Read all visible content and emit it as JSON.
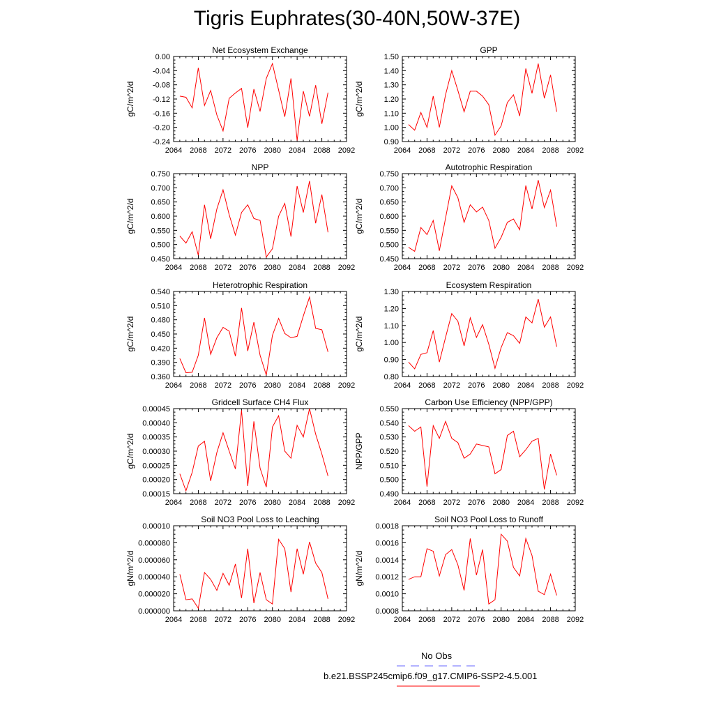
{
  "title": "Tigris Euphrates(30-40N,50W-37E)",
  "series_color": "#ff0000",
  "obs_color": "#6666ff",
  "legend": {
    "obs_label": "No Obs",
    "model_label": "b.e21.BSSP245cmip6.f09_g17.CMIP6-SSP2-4.5.001"
  },
  "chart_data": [
    {
      "type": "line",
      "title": "Net Ecosystem Exchange",
      "ylabel": "gC/m^2/d",
      "xlim": [
        2064,
        2092
      ],
      "xticks": [
        "2064",
        "2068",
        "2072",
        "2076",
        "2080",
        "2084",
        "2088",
        "2092"
      ],
      "ylim": [
        -0.24,
        0.0
      ],
      "yticks": [
        "-0.24",
        "-0.20",
        "-0.16",
        "-0.12",
        "-0.08",
        "-0.04",
        "0.00"
      ],
      "x": [
        2065,
        2066,
        2067,
        2068,
        2069,
        2070,
        2071,
        2072,
        2073,
        2074,
        2075,
        2076,
        2077,
        2078,
        2079,
        2080,
        2081,
        2082,
        2083,
        2084,
        2085,
        2086,
        2087,
        2088,
        2089
      ],
      "values": [
        -0.112,
        -0.115,
        -0.145,
        -0.032,
        -0.138,
        -0.096,
        -0.165,
        -0.21,
        -0.118,
        -0.103,
        -0.09,
        -0.201,
        -0.092,
        -0.155,
        -0.062,
        -0.02,
        -0.095,
        -0.17,
        -0.062,
        -0.237,
        -0.098,
        -0.169,
        -0.081,
        -0.19,
        -0.102
      ]
    },
    {
      "type": "line",
      "title": "GPP",
      "ylabel": "gC/m^2/d",
      "xlim": [
        2064,
        2092
      ],
      "xticks": [
        "2064",
        "2068",
        "2072",
        "2076",
        "2080",
        "2084",
        "2088",
        "2092"
      ],
      "ylim": [
        0.9,
        1.5
      ],
      "yticks": [
        "0.90",
        "1.00",
        "1.10",
        "1.20",
        "1.30",
        "1.40",
        "1.50"
      ],
      "x": [
        2065,
        2066,
        2067,
        2068,
        2069,
        2070,
        2071,
        2072,
        2073,
        2074,
        2075,
        2076,
        2077,
        2078,
        2079,
        2080,
        2081,
        2082,
        2083,
        2084,
        2085,
        2086,
        2087,
        2088,
        2089
      ],
      "values": [
        1.02,
        0.98,
        1.105,
        1.0,
        1.22,
        1.0,
        1.23,
        1.4,
        1.26,
        1.11,
        1.255,
        1.255,
        1.22,
        1.16,
        0.945,
        1.01,
        1.175,
        1.23,
        1.08,
        1.415,
        1.24,
        1.45,
        1.205,
        1.37,
        1.11
      ]
    },
    {
      "type": "line",
      "title": "NPP",
      "ylabel": "gC/m^2/d",
      "xlim": [
        2064,
        2092
      ],
      "xticks": [
        "2064",
        "2068",
        "2072",
        "2076",
        "2080",
        "2084",
        "2088",
        "2092"
      ],
      "ylim": [
        0.45,
        0.75
      ],
      "yticks": [
        "0.450",
        "0.500",
        "0.550",
        "0.600",
        "0.650",
        "0.700",
        "0.750"
      ],
      "x": [
        2065,
        2066,
        2067,
        2068,
        2069,
        2070,
        2071,
        2072,
        2073,
        2074,
        2075,
        2076,
        2077,
        2078,
        2079,
        2080,
        2081,
        2082,
        2083,
        2084,
        2085,
        2086,
        2087,
        2088,
        2089
      ],
      "values": [
        0.53,
        0.505,
        0.545,
        0.462,
        0.64,
        0.52,
        0.625,
        0.693,
        0.605,
        0.533,
        0.613,
        0.64,
        0.592,
        0.585,
        0.456,
        0.485,
        0.6,
        0.645,
        0.528,
        0.706,
        0.613,
        0.724,
        0.575,
        0.676,
        0.543
      ]
    },
    {
      "type": "line",
      "title": "Autotrophic Respiration",
      "ylabel": "gC/m^2/d",
      "xlim": [
        2064,
        2092
      ],
      "xticks": [
        "2064",
        "2068",
        "2072",
        "2076",
        "2080",
        "2084",
        "2088",
        "2092"
      ],
      "ylim": [
        0.45,
        0.75
      ],
      "yticks": [
        "0.450",
        "0.500",
        "0.550",
        "0.600",
        "0.650",
        "0.700",
        "0.750"
      ],
      "x": [
        2065,
        2066,
        2067,
        2068,
        2069,
        2070,
        2071,
        2072,
        2073,
        2074,
        2075,
        2076,
        2077,
        2078,
        2079,
        2080,
        2081,
        2082,
        2083,
        2084,
        2085,
        2086,
        2087,
        2088,
        2089
      ],
      "values": [
        0.49,
        0.476,
        0.56,
        0.535,
        0.585,
        0.478,
        0.593,
        0.707,
        0.665,
        0.578,
        0.64,
        0.615,
        0.632,
        0.585,
        0.487,
        0.525,
        0.578,
        0.59,
        0.552,
        0.708,
        0.625,
        0.727,
        0.63,
        0.692,
        0.563
      ]
    },
    {
      "type": "line",
      "title": "Heterotrophic Respiration",
      "ylabel": "gC/m^2/d",
      "xlim": [
        2064,
        2092
      ],
      "xticks": [
        "2064",
        "2068",
        "2072",
        "2076",
        "2080",
        "2084",
        "2088",
        "2092"
      ],
      "ylim": [
        0.36,
        0.54
      ],
      "yticks": [
        "0.360",
        "0.390",
        "0.420",
        "0.450",
        "0.480",
        "0.510",
        "0.540"
      ],
      "x": [
        2065,
        2066,
        2067,
        2068,
        2069,
        2070,
        2071,
        2072,
        2073,
        2074,
        2075,
        2076,
        2077,
        2078,
        2079,
        2080,
        2081,
        2082,
        2083,
        2084,
        2085,
        2086,
        2087,
        2088,
        2089
      ],
      "values": [
        0.398,
        0.368,
        0.369,
        0.405,
        0.484,
        0.407,
        0.442,
        0.464,
        0.456,
        0.403,
        0.505,
        0.414,
        0.475,
        0.405,
        0.363,
        0.447,
        0.483,
        0.451,
        0.442,
        0.445,
        0.488,
        0.528,
        0.462,
        0.459,
        0.412
      ]
    },
    {
      "type": "line",
      "title": "Ecosystem Respiration",
      "ylabel": "gC/m^2/d",
      "xlim": [
        2064,
        2092
      ],
      "xticks": [
        "2064",
        "2068",
        "2072",
        "2076",
        "2080",
        "2084",
        "2088",
        "2092"
      ],
      "ylim": [
        0.8,
        1.3
      ],
      "yticks": [
        "0.80",
        "0.90",
        "1.00",
        "1.10",
        "1.20",
        "1.30"
      ],
      "x": [
        2065,
        2066,
        2067,
        2068,
        2069,
        2070,
        2071,
        2072,
        2073,
        2074,
        2075,
        2076,
        2077,
        2078,
        2079,
        2080,
        2081,
        2082,
        2083,
        2084,
        2085,
        2086,
        2087,
        2088,
        2089
      ],
      "values": [
        0.885,
        0.845,
        0.93,
        0.94,
        1.07,
        0.885,
        1.03,
        1.17,
        1.125,
        0.98,
        1.145,
        1.03,
        1.105,
        0.99,
        0.848,
        0.97,
        1.058,
        1.04,
        0.995,
        1.15,
        1.115,
        1.255,
        1.09,
        1.15,
        0.975
      ]
    },
    {
      "type": "line",
      "title": "Gridcell Surface CH4 Flux",
      "ylabel": "gC/m^2/d",
      "xlim": [
        2064,
        2092
      ],
      "xticks": [
        "2064",
        "2068",
        "2072",
        "2076",
        "2080",
        "2084",
        "2088",
        "2092"
      ],
      "ylim": [
        0.00015,
        0.00045
      ],
      "yticks": [
        "0.00015",
        "0.00020",
        "0.00025",
        "0.00030",
        "0.00035",
        "0.00040",
        "0.00045"
      ],
      "x": [
        2065,
        2066,
        2067,
        2068,
        2069,
        2070,
        2071,
        2072,
        2073,
        2074,
        2075,
        2076,
        2077,
        2078,
        2079,
        2080,
        2081,
        2082,
        2083,
        2084,
        2085,
        2086,
        2087,
        2088,
        2089
      ],
      "values": [
        0.00022,
        0.00016,
        0.000225,
        0.000318,
        0.000335,
        0.000195,
        0.000295,
        0.000365,
        0.0003,
        0.000237,
        0.000444,
        0.000177,
        0.000405,
        0.00024,
        0.000173,
        0.000385,
        0.000425,
        0.0003,
        0.000275,
        0.000391,
        0.00035,
        0.00045,
        0.00036,
        0.00029,
        0.000212
      ]
    },
    {
      "type": "line",
      "title": "Carbon Use Efficiency (NPP/GPP)",
      "ylabel": "NPP/GPP",
      "xlim": [
        2064,
        2092
      ],
      "xticks": [
        "2064",
        "2068",
        "2072",
        "2076",
        "2080",
        "2084",
        "2088",
        "2092"
      ],
      "ylim": [
        0.49,
        0.55
      ],
      "yticks": [
        "0.490",
        "0.500",
        "0.510",
        "0.520",
        "0.530",
        "0.540",
        "0.550"
      ],
      "x": [
        2065,
        2066,
        2067,
        2068,
        2069,
        2070,
        2071,
        2072,
        2073,
        2074,
        2075,
        2076,
        2077,
        2078,
        2079,
        2080,
        2081,
        2082,
        2083,
        2084,
        2085,
        2086,
        2087,
        2088,
        2089
      ],
      "values": [
        0.538,
        0.534,
        0.537,
        0.495,
        0.538,
        0.529,
        0.541,
        0.529,
        0.526,
        0.515,
        0.518,
        0.525,
        0.524,
        0.523,
        0.504,
        0.507,
        0.531,
        0.534,
        0.516,
        0.521,
        0.527,
        0.529,
        0.493,
        0.518,
        0.503
      ]
    },
    {
      "type": "line",
      "title": "Soil NO3 Pool Loss to Leaching",
      "ylabel": "gN/m^2/d",
      "xlim": [
        2064,
        2092
      ],
      "xticks": [
        "2064",
        "2068",
        "2072",
        "2076",
        "2080",
        "2084",
        "2088",
        "2092"
      ],
      "ylim": [
        0.0,
        0.0001
      ],
      "yticks": [
        "0.000000",
        "0.000020",
        "0.000040",
        "0.000060",
        "0.000080",
        "0.00010"
      ],
      "x": [
        2065,
        2066,
        2067,
        2068,
        2069,
        2070,
        2071,
        2072,
        2073,
        2074,
        2075,
        2076,
        2077,
        2078,
        2079,
        2080,
        2081,
        2082,
        2083,
        2084,
        2085,
        2086,
        2087,
        2088,
        2089
      ],
      "values": [
        4.3e-05,
        1.3e-05,
        1.4e-05,
        3e-06,
        4.5e-05,
        3.7e-05,
        2.4e-05,
        4.4e-05,
        3e-05,
        5.5e-05,
        1.5e-05,
        7.3e-05,
        9e-06,
        4.5e-05,
        1.3e-05,
        8e-06,
        8.4e-05,
        7.3e-05,
        2.2e-05,
        7.3e-05,
        4.3e-05,
        8.1e-05,
        5.6e-05,
        4.5e-05,
        1.4e-05
      ]
    },
    {
      "type": "line",
      "title": "Soil NO3 Pool Loss to Runoff",
      "ylabel": "gN/m^2/d",
      "xlim": [
        2064,
        2092
      ],
      "xticks": [
        "2064",
        "2068",
        "2072",
        "2076",
        "2080",
        "2084",
        "2088",
        "2092"
      ],
      "ylim": [
        0.0008,
        0.0018
      ],
      "yticks": [
        "0.0008",
        "0.0010",
        "0.0012",
        "0.0014",
        "0.0016",
        "0.0018"
      ],
      "x": [
        2065,
        2066,
        2067,
        2068,
        2069,
        2070,
        2071,
        2072,
        2073,
        2074,
        2075,
        2076,
        2077,
        2078,
        2079,
        2080,
        2081,
        2082,
        2083,
        2084,
        2085,
        2086,
        2087,
        2088,
        2089
      ],
      "values": [
        0.00117,
        0.0012,
        0.0012,
        0.00153,
        0.0015,
        0.00121,
        0.00146,
        0.00152,
        0.00134,
        0.00104,
        0.00165,
        0.00122,
        0.00152,
        0.00088,
        0.00093,
        0.0017,
        0.00162,
        0.00131,
        0.00121,
        0.00165,
        0.00145,
        0.00103,
        0.00099,
        0.00123,
        0.00098
      ]
    }
  ]
}
